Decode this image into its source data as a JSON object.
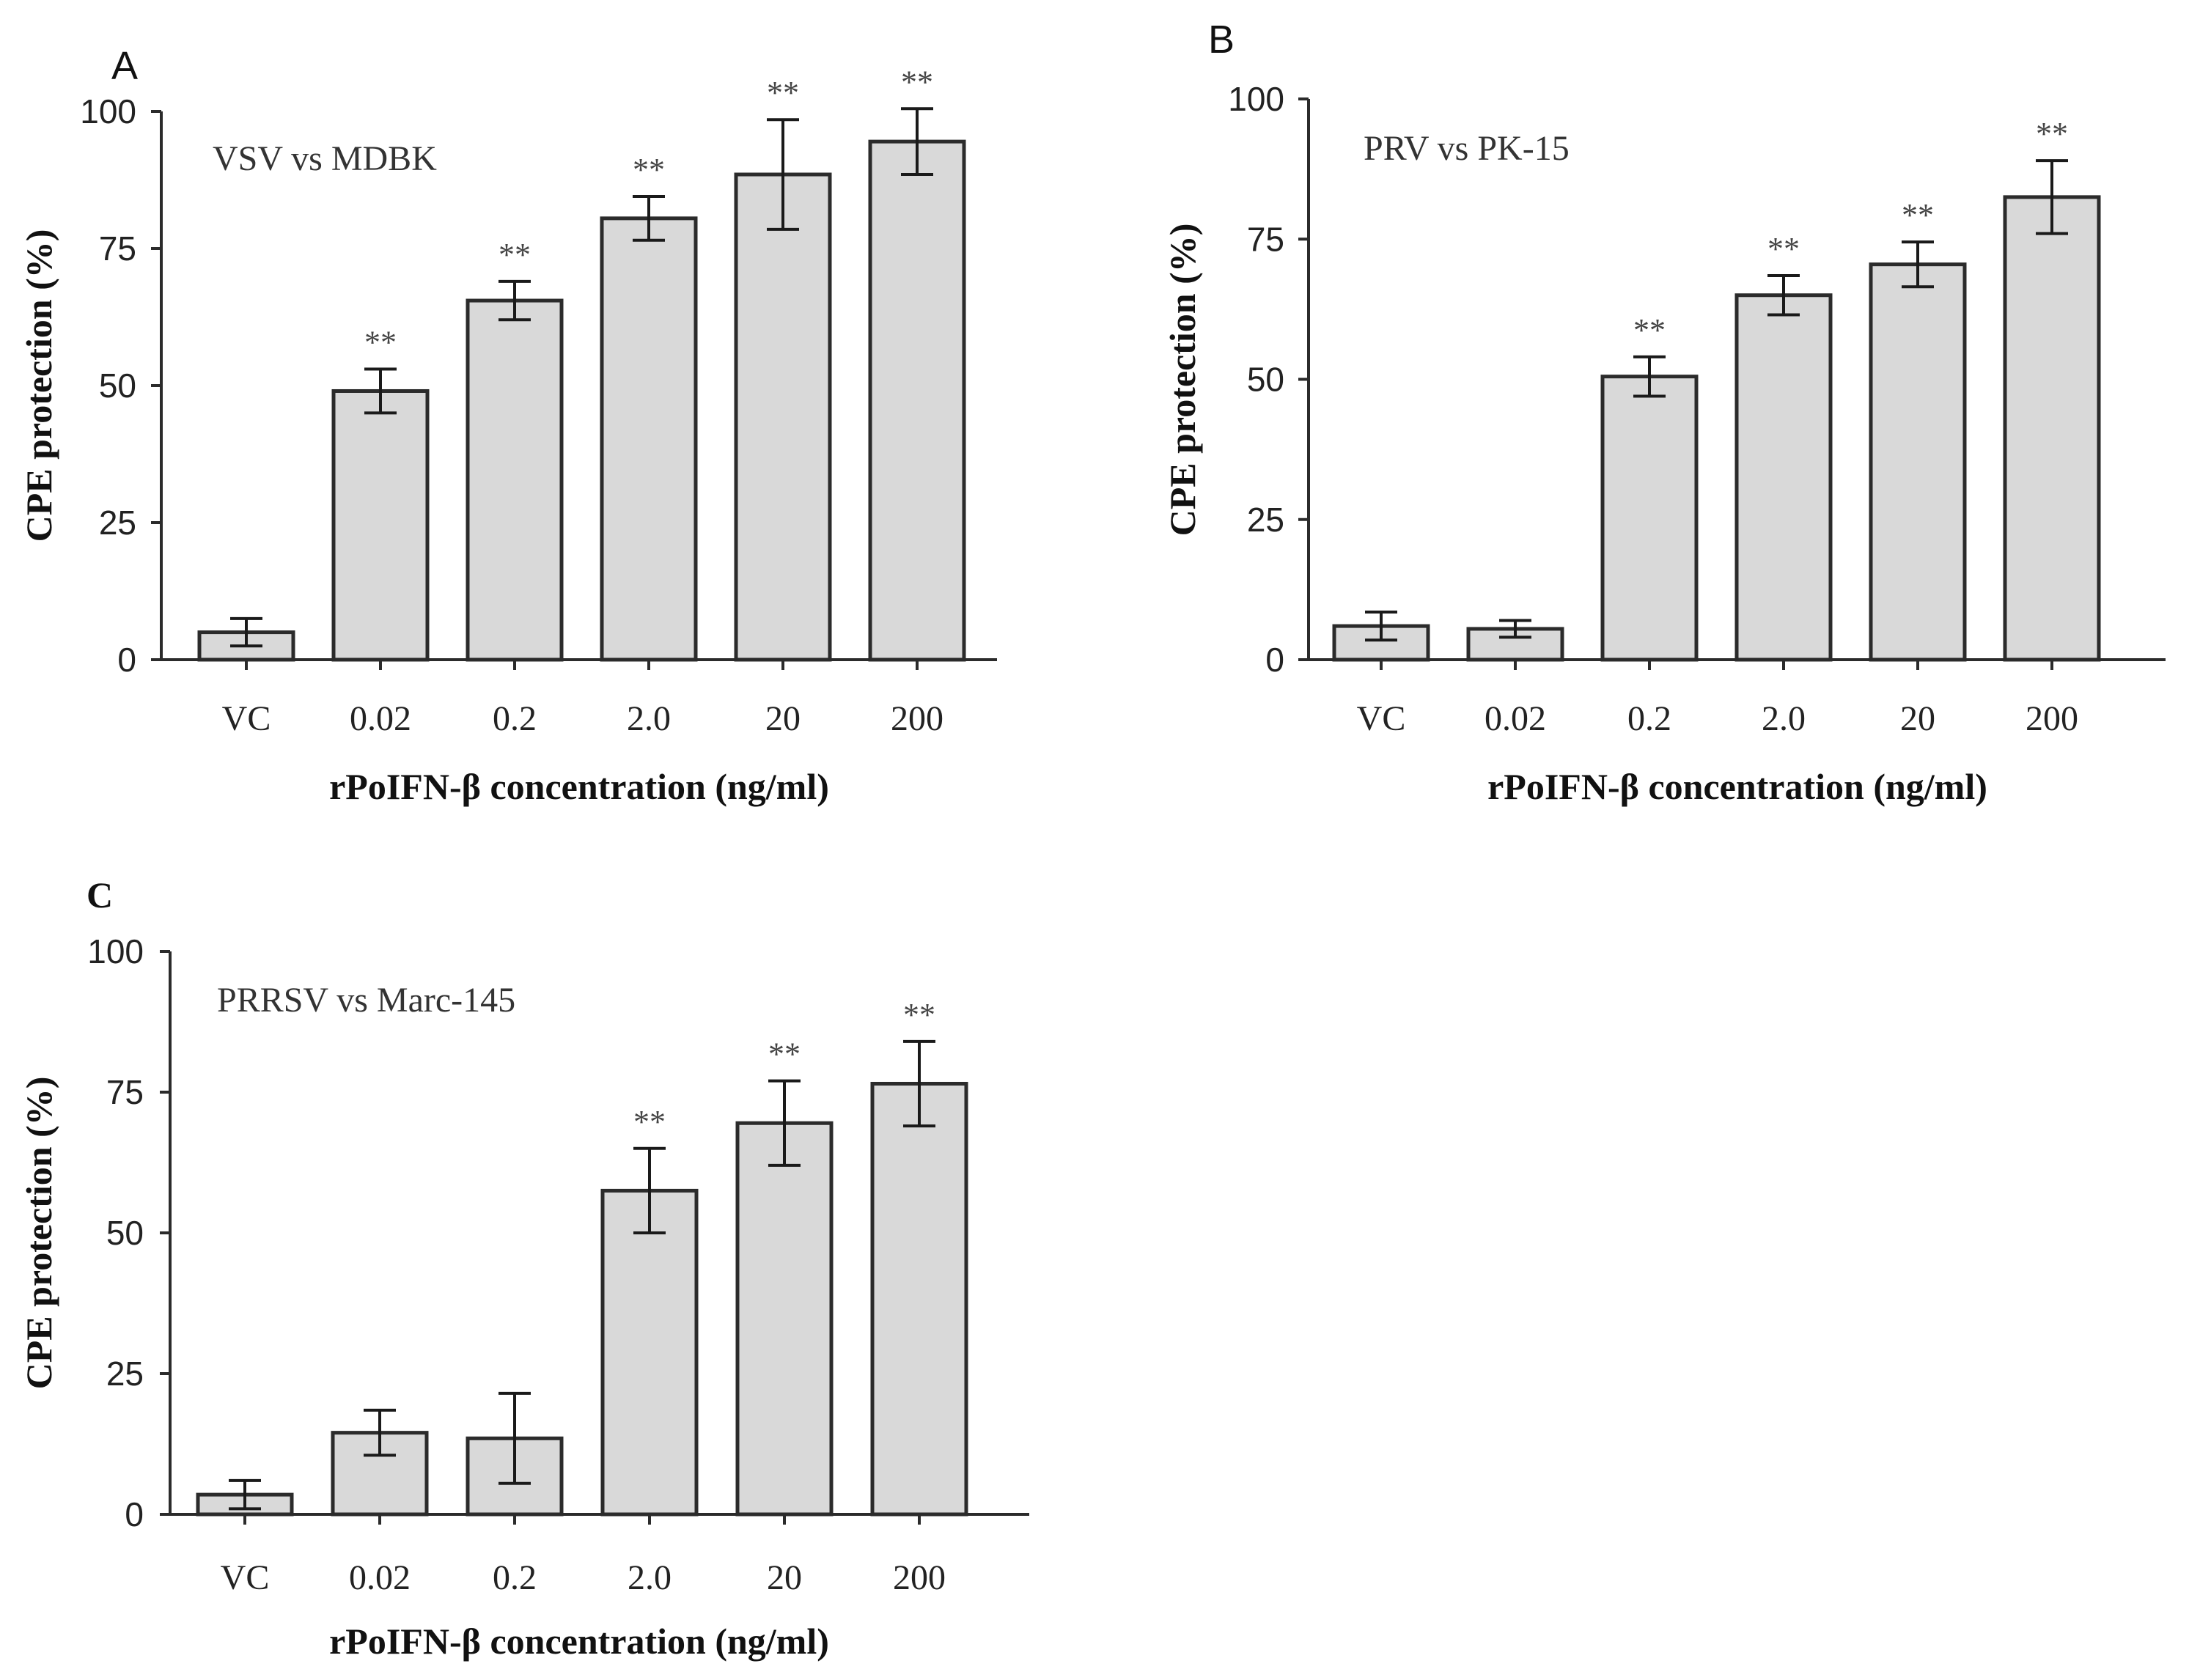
{
  "chart_data": [
    {
      "type": "bar",
      "panel_label": "A",
      "subtitle": "VSV vs MDBK",
      "categories": [
        "VC",
        "0.02",
        "0.2",
        "2.0",
        "20",
        "200"
      ],
      "values": [
        5,
        49,
        65.5,
        80.5,
        88.5,
        94.5
      ],
      "errors": [
        2.5,
        4,
        3.5,
        4,
        10,
        6
      ],
      "significance": [
        "",
        "**",
        "**",
        "**",
        "**",
        "**"
      ],
      "xlabel": "rPoIFN-β concentration (ng/ml)",
      "ylabel": "CPE protection (%)",
      "ylim": [
        0,
        100
      ],
      "yticks": [
        0,
        25,
        50,
        75,
        100
      ]
    },
    {
      "type": "bar",
      "panel_label": "B",
      "subtitle": "PRV vs PK-15",
      "categories": [
        "VC",
        "0.02",
        "0.2",
        "2.0",
        "20",
        "200"
      ],
      "values": [
        6,
        5.5,
        50.5,
        65,
        70.5,
        82.5
      ],
      "errors": [
        2.5,
        1.5,
        3.5,
        3.5,
        4,
        6.5
      ],
      "significance": [
        "",
        "",
        "**",
        "**",
        "**",
        "**"
      ],
      "xlabel": "rPoIFN-β concentration (ng/ml)",
      "ylabel": "CPE protection (%)",
      "ylim": [
        0,
        100
      ],
      "yticks": [
        0,
        25,
        50,
        75,
        100
      ]
    },
    {
      "type": "bar",
      "panel_label": "C",
      "subtitle": "PRRSV vs Marc-145",
      "categories": [
        "VC",
        "0.02",
        "0.2",
        "2.0",
        "20",
        "200"
      ],
      "values": [
        3.5,
        14.5,
        13.5,
        57.5,
        69.5,
        76.5
      ],
      "errors": [
        2.5,
        4,
        8,
        7.5,
        7.5,
        7.5
      ],
      "significance": [
        "",
        "",
        "",
        "**",
        "**",
        "**"
      ],
      "xlabel": "rPoIFN-β concentration (ng/ml)",
      "ylabel": "CPE protection (%)",
      "ylim": [
        0,
        100
      ],
      "yticks": [
        0,
        25,
        50,
        75,
        100
      ]
    }
  ]
}
